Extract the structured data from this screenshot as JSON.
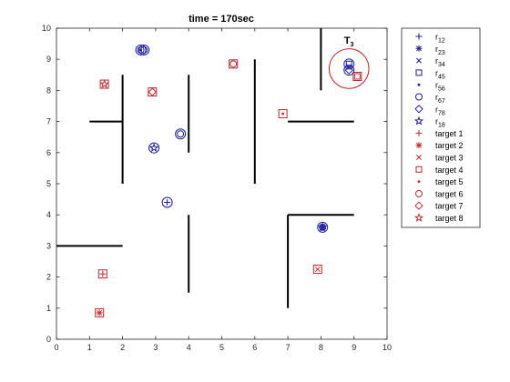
{
  "chart_data": {
    "type": "scatter",
    "title": "time = 170sec",
    "xlabel": "",
    "ylabel": "",
    "xlim": [
      0,
      10
    ],
    "ylim": [
      0,
      10
    ],
    "xticks": [
      "0",
      "1",
      "2",
      "3",
      "4",
      "5",
      "6",
      "7",
      "8",
      "9",
      "10"
    ],
    "yticks": [
      "0",
      "1",
      "2",
      "3",
      "4",
      "5",
      "6",
      "7",
      "8",
      "9",
      "10"
    ],
    "grid": false,
    "legend_position": "outside-right",
    "colors": {
      "robot": "#1a1aa8",
      "target": "#c8252a",
      "wall": "#000000"
    },
    "walls": [
      {
        "x": [
          8,
          8
        ],
        "y": [
          8,
          10
        ]
      },
      {
        "x": [
          7,
          9
        ],
        "y": [
          7,
          7
        ]
      },
      {
        "x": [
          6,
          6
        ],
        "y": [
          5,
          9
        ]
      },
      {
        "x": [
          4,
          4
        ],
        "y": [
          6,
          8.5
        ]
      },
      {
        "x": [
          2,
          2
        ],
        "y": [
          5,
          8.5
        ]
      },
      {
        "x": [
          1,
          2
        ],
        "y": [
          7,
          7
        ]
      },
      {
        "x": [
          0,
          2
        ],
        "y": [
          3,
          3
        ]
      },
      {
        "x": [
          4,
          4
        ],
        "y": [
          1.5,
          4
        ]
      },
      {
        "x": [
          7,
          7
        ],
        "y": [
          1,
          4
        ]
      },
      {
        "x": [
          7,
          9
        ],
        "y": [
          4,
          4
        ]
      }
    ],
    "robots": [
      {
        "label": "r12",
        "marker": "plus",
        "x": 3.35,
        "y": 4.4
      },
      {
        "label": "r23",
        "marker": "asterisk",
        "x": 8.05,
        "y": 3.6
      },
      {
        "label": "r34",
        "marker": "x",
        "x": 8.85,
        "y": 8.75
      },
      {
        "label": "r45",
        "marker": "square",
        "x": 8.85,
        "y": 8.85
      },
      {
        "label": "r56",
        "marker": "dot",
        "x": 2.55,
        "y": 9.3
      },
      {
        "label": "r67",
        "marker": "circle",
        "x": 2.55,
        "y": 9.3
      },
      {
        "label": "r67",
        "marker": "circle",
        "x": 2.65,
        "y": 9.3
      },
      {
        "label": "r67",
        "marker": "circle",
        "x": 3.75,
        "y": 6.6
      },
      {
        "label": "r67",
        "marker": "circle",
        "x": 8.05,
        "y": 3.6
      },
      {
        "label": "r78",
        "marker": "diamond",
        "x": 8.85,
        "y": 8.65
      },
      {
        "label": "r18",
        "marker": "pentagram",
        "x": 2.95,
        "y": 6.15
      },
      {
        "label": "r18",
        "marker": "pentagram",
        "x": 8.05,
        "y": 3.6
      }
    ],
    "robot_circles": [
      {
        "x": 2.55,
        "y": 9.3
      },
      {
        "x": 2.65,
        "y": 9.3
      },
      {
        "x": 3.35,
        "y": 4.4
      },
      {
        "x": 3.75,
        "y": 6.6
      },
      {
        "x": 2.95,
        "y": 6.15
      },
      {
        "x": 8.05,
        "y": 3.6
      },
      {
        "x": 8.85,
        "y": 8.85
      },
      {
        "x": 8.85,
        "y": 8.65
      }
    ],
    "targets": [
      {
        "label": "target 1",
        "marker": "plus",
        "x": 1.4,
        "y": 2.1
      },
      {
        "label": "target 2",
        "marker": "asterisk",
        "x": 1.3,
        "y": 0.85
      },
      {
        "label": "target 3",
        "marker": "x",
        "x": 7.9,
        "y": 2.25
      },
      {
        "label": "target 4",
        "marker": "square",
        "x": 9.1,
        "y": 8.45
      },
      {
        "label": "target 5",
        "marker": "dot",
        "x": 6.85,
        "y": 7.25
      },
      {
        "label": "target 6",
        "marker": "circle",
        "x": 5.35,
        "y": 8.85
      },
      {
        "label": "target 7",
        "marker": "diamond",
        "x": 2.9,
        "y": 7.95
      },
      {
        "label": "target 8",
        "marker": "pentagram",
        "x": 1.45,
        "y": 8.2
      }
    ],
    "target_squares": [
      {
        "x": 1.4,
        "y": 2.1
      },
      {
        "x": 1.3,
        "y": 0.85
      },
      {
        "x": 7.9,
        "y": 2.25
      },
      {
        "x": 9.1,
        "y": 8.45
      },
      {
        "x": 6.85,
        "y": 7.25
      },
      {
        "x": 5.35,
        "y": 8.85
      },
      {
        "x": 2.9,
        "y": 7.95
      },
      {
        "x": 1.45,
        "y": 8.2
      }
    ],
    "annotation": {
      "main": "T",
      "sub": "3",
      "x": 8.85,
      "y": 9.5
    },
    "highlight_circle": {
      "x": 8.85,
      "y": 8.7,
      "radius": 0.6
    },
    "legend": [
      {
        "marker": "plus",
        "group": "robot",
        "main": "r",
        "sub": "12"
      },
      {
        "marker": "asterisk",
        "group": "robot",
        "main": "r",
        "sub": "23"
      },
      {
        "marker": "x",
        "group": "robot",
        "main": "r",
        "sub": "34"
      },
      {
        "marker": "square",
        "group": "robot",
        "main": "r",
        "sub": "45"
      },
      {
        "marker": "dot",
        "group": "robot",
        "main": "r",
        "sub": "56"
      },
      {
        "marker": "circle",
        "group": "robot",
        "main": "r",
        "sub": "67"
      },
      {
        "marker": "diamond",
        "group": "robot",
        "main": "r",
        "sub": "78"
      },
      {
        "marker": "pentagram",
        "group": "robot",
        "main": "r",
        "sub": "18"
      },
      {
        "marker": "plus",
        "group": "target",
        "main": "target 1",
        "sub": ""
      },
      {
        "marker": "asterisk",
        "group": "target",
        "main": "target 2",
        "sub": ""
      },
      {
        "marker": "x",
        "group": "target",
        "main": "target 3",
        "sub": ""
      },
      {
        "marker": "square",
        "group": "target",
        "main": "target 4",
        "sub": ""
      },
      {
        "marker": "dot",
        "group": "target",
        "main": "target 5",
        "sub": ""
      },
      {
        "marker": "circle",
        "group": "target",
        "main": "target 6",
        "sub": ""
      },
      {
        "marker": "diamond",
        "group": "target",
        "main": "target 7",
        "sub": ""
      },
      {
        "marker": "pentagram",
        "group": "target",
        "main": "target 8",
        "sub": ""
      }
    ]
  }
}
